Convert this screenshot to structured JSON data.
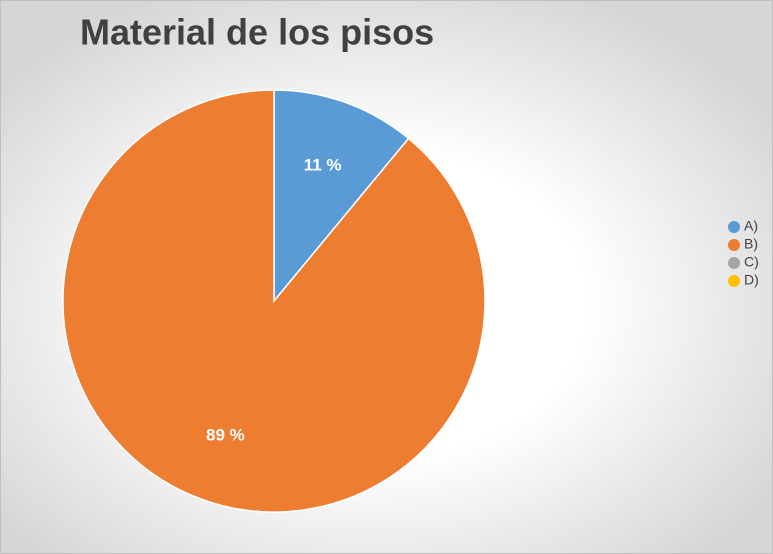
{
  "chart_data": {
    "type": "pie",
    "title": "Material de los pisos",
    "categories": [
      "A)",
      "B)",
      "C)",
      "D)"
    ],
    "values": [
      11,
      89,
      0,
      0
    ],
    "value_labels": [
      "11 %",
      "89 %",
      null,
      null
    ],
    "colors": [
      "#5b9bd5",
      "#ed7d31",
      "#a5a5a5",
      "#ffc000"
    ],
    "legend": "right"
  }
}
